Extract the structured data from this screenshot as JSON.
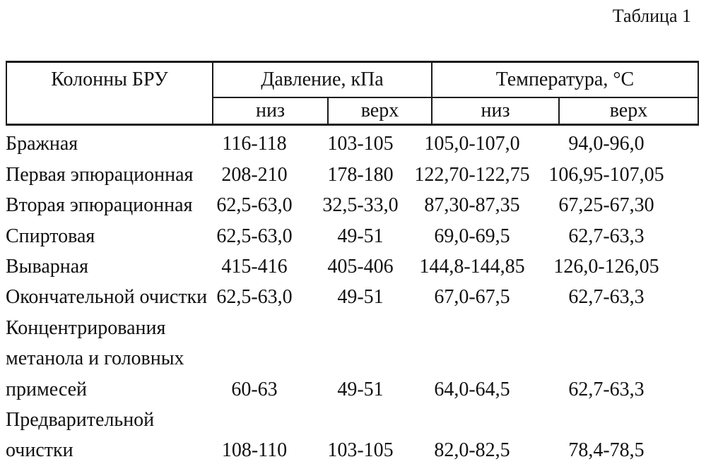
{
  "caption": "Таблица 1",
  "table": {
    "col_group_label": "Колонны БРУ",
    "group_headers": [
      "Давление, кПа",
      "Температура, °С"
    ],
    "sub_headers": [
      "низ",
      "верх",
      "низ",
      "верх"
    ],
    "rows": [
      [
        "Бражная",
        "116-118",
        "103-105",
        "105,0-107,0",
        "94,0-96,0"
      ],
      [
        "Первая эпюрационная",
        "208-210",
        "178-180",
        "122,70-122,75",
        "106,95-107,05"
      ],
      [
        "Вторая эпюрационная",
        "62,5-63,0",
        "32,5-33,0",
        "87,30-87,35",
        "67,25-67,30"
      ],
      [
        "Спиртовая",
        "62,5-63,0",
        "49-51",
        "69,0-69,5",
        "62,7-63,3"
      ],
      [
        "Выварная",
        "415-416",
        "405-406",
        "144,8-144,85",
        "126,0-126,05"
      ],
      [
        "Окончательной очистки",
        "62,5-63,0",
        "49-51",
        "67,0-67,5",
        "62,7-63,3"
      ],
      [
        "Концентрирования",
        "",
        "",
        "",
        ""
      ],
      [
        "метанола и головных",
        "",
        "",
        "",
        ""
      ],
      [
        "примесей",
        "60-63",
        "49-51",
        "64,0-64,5",
        "62,7-63,3"
      ],
      [
        "Предварительной",
        "",
        "",
        "",
        ""
      ],
      [
        "очистки",
        "108-110",
        "103-105",
        "82,0-82,5",
        "78,4-78,5"
      ]
    ]
  }
}
